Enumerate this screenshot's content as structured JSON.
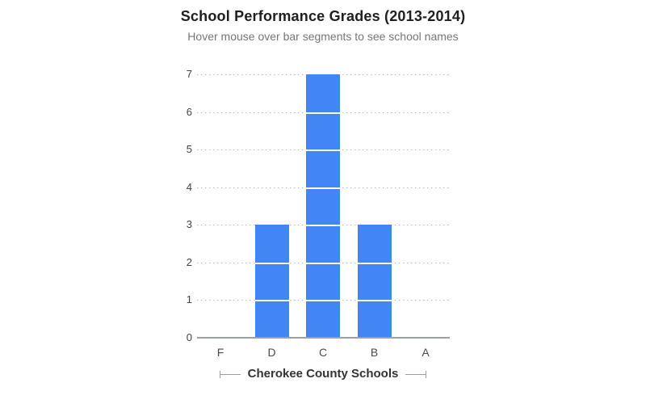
{
  "chart_data": {
    "type": "bar",
    "title": "School Performance Grades (2013-2014)",
    "subtitle": "Hover mouse over bar segments to see school names",
    "categories": [
      "F",
      "D",
      "C",
      "B",
      "A"
    ],
    "values": [
      0,
      3,
      7,
      3,
      0
    ],
    "xlabel": "Cherokee County Schools",
    "ylabel": "",
    "ylim": [
      0,
      7
    ],
    "yticks": [
      0,
      1,
      2,
      3,
      4,
      5,
      6,
      7
    ],
    "grid": "horizontal-dotted",
    "legend": "none",
    "bar_style": "stacked-unit-segments",
    "colors": {
      "bar": "#4285f4",
      "segment_divider": "#ffffff",
      "axis_line": "#9aa0a6",
      "gridline": "#bdbdbd",
      "title": "#1f1f1f",
      "subtitle": "#757575",
      "tick_labels": "#424242",
      "xaxis_title": "#333333",
      "bracket": "#9e9e9e",
      "background": "#ffffff"
    }
  }
}
